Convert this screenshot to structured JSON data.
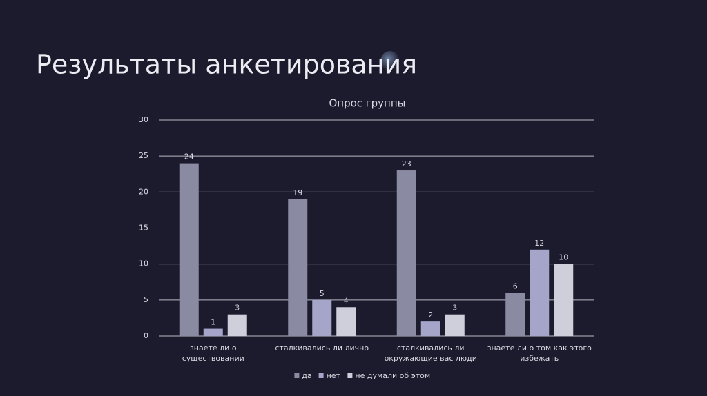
{
  "header": {
    "title": "Результаты анкетирования"
  },
  "chart_data": {
    "type": "bar",
    "title": "Опрос группы",
    "categories": [
      "знаете ли о существовании",
      "сталкивались ли лично",
      "сталкивались ли окружающие вас люди",
      "знаете ли о том как этого избежать"
    ],
    "series": [
      {
        "name": "да",
        "color": "#8a8aa2",
        "values": [
          24,
          19,
          23,
          6
        ]
      },
      {
        "name": "нет",
        "color": "#a5a5c9",
        "values": [
          1,
          5,
          2,
          12
        ]
      },
      {
        "name": "не думали об этом",
        "color": "#cfcfdc",
        "values": [
          3,
          4,
          3,
          10
        ]
      }
    ],
    "ylim": [
      0,
      30
    ],
    "yticks": [
      0,
      5,
      10,
      15,
      20,
      25,
      30
    ],
    "grid": true,
    "legend": "bottom"
  }
}
